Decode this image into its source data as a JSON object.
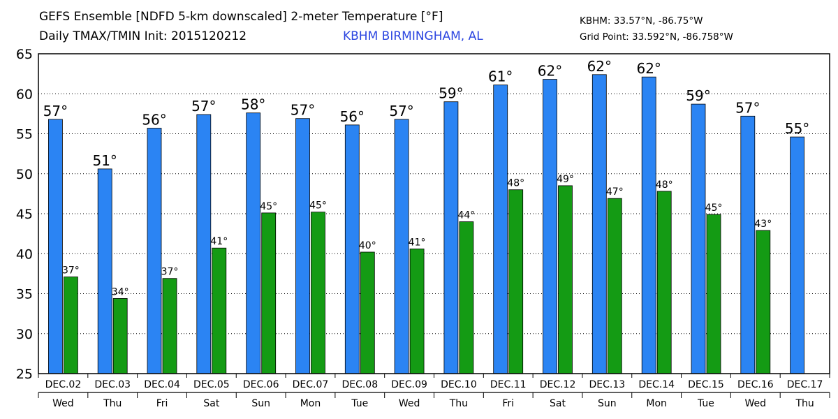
{
  "header": {
    "title": "GEFS Ensemble [NDFD 5-km downscaled] 2-meter Temperature [°F]",
    "subtitle": "Daily TMAX/TMIN Init: 2015120212",
    "station": "KBHM BIRMINGHAM, AL",
    "coord1": "KBHM: 33.57°N, -86.75°W",
    "coord2": "Grid Point: 33.592°N, -86.758°W"
  },
  "colors": {
    "tmax": "#2b84f3",
    "tmin": "#149b14"
  },
  "chart_data": {
    "type": "bar",
    "categories": [
      "DEC.02",
      "DEC.03",
      "DEC.04",
      "DEC.05",
      "DEC.06",
      "DEC.07",
      "DEC.08",
      "DEC.09",
      "DEC.10",
      "DEC.11",
      "DEC.12",
      "DEC.13",
      "DEC.14",
      "DEC.15",
      "DEC.16",
      "DEC.17"
    ],
    "weekdays": [
      "Wed",
      "Thu",
      "Fri",
      "Sat",
      "Sun",
      "Mon",
      "Tue",
      "Wed",
      "Thu",
      "Fri",
      "Sat",
      "Sun",
      "Mon",
      "Tue",
      "Wed",
      "Thu"
    ],
    "series": [
      {
        "key": "tmax",
        "values": [
          56.8,
          50.6,
          55.7,
          57.4,
          57.6,
          56.9,
          56.1,
          56.8,
          59.0,
          61.1,
          61.8,
          62.4,
          62.1,
          58.7,
          57.2,
          54.6
        ],
        "labels": [
          "57°",
          "51°",
          "56°",
          "57°",
          "58°",
          "57°",
          "56°",
          "57°",
          "59°",
          "61°",
          "62°",
          "62°",
          "62°",
          "59°",
          "57°",
          "55°"
        ]
      },
      {
        "key": "tmin",
        "values": [
          37.1,
          34.4,
          36.9,
          40.7,
          45.1,
          45.2,
          40.2,
          40.6,
          44.0,
          48.0,
          48.5,
          46.9,
          47.8,
          44.9,
          42.9,
          null
        ],
        "labels": [
          "37°",
          "34°",
          "37°",
          "41°",
          "45°",
          "45°",
          "40°",
          "41°",
          "44°",
          "48°",
          "49°",
          "47°",
          "48°",
          "45°",
          "43°",
          ""
        ]
      }
    ],
    "ylim": [
      25,
      65
    ],
    "yticks": [
      "25",
      "30",
      "35",
      "40",
      "45",
      "50",
      "55",
      "60",
      "65"
    ],
    "grid": "horizontal",
    "xlabel": "",
    "ylabel": ""
  }
}
